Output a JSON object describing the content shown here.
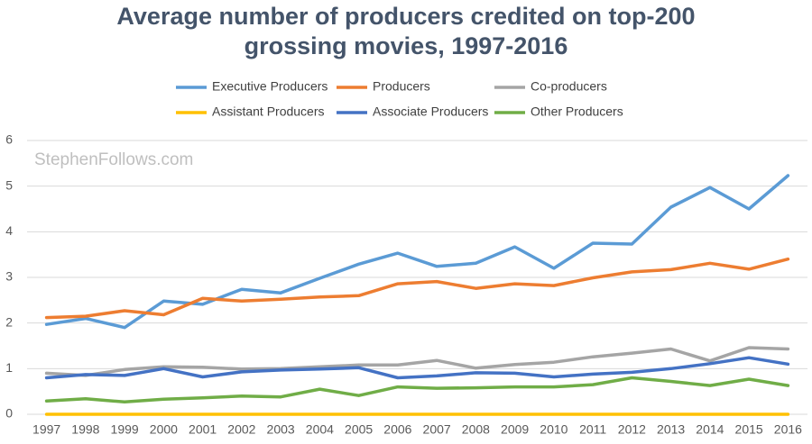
{
  "chart_data": {
    "type": "line",
    "title": [
      "Average number of producers credited on top-200",
      "grossing movies, 1997-2016"
    ],
    "watermark": "StephenFollows.com",
    "categories": [
      "1997",
      "1998",
      "1999",
      "2000",
      "2001",
      "2002",
      "2003",
      "2004",
      "2005",
      "2006",
      "2007",
      "2008",
      "2009",
      "2010",
      "2011",
      "2012",
      "2013",
      "2014",
      "2015",
      "2016"
    ],
    "series": [
      {
        "name": "Executive Producers",
        "color": "#5b9bd5",
        "values": [
          1.97,
          2.1,
          1.9,
          2.48,
          2.41,
          2.74,
          2.66,
          2.98,
          3.29,
          3.53,
          3.24,
          3.31,
          3.67,
          3.2,
          3.75,
          3.73,
          4.54,
          4.97,
          4.5,
          5.23
        ]
      },
      {
        "name": "Producers",
        "color": "#ed7d31",
        "values": [
          2.12,
          2.15,
          2.27,
          2.18,
          2.54,
          2.48,
          2.52,
          2.57,
          2.6,
          2.86,
          2.91,
          2.76,
          2.86,
          2.82,
          2.99,
          3.12,
          3.17,
          3.31,
          3.18,
          3.4
        ]
      },
      {
        "name": "Co-producers",
        "color": "#a5a5a5",
        "values": [
          0.9,
          0.85,
          0.98,
          1.04,
          1.03,
          0.99,
          1.0,
          1.04,
          1.08,
          1.08,
          1.18,
          1.01,
          1.09,
          1.14,
          1.26,
          1.34,
          1.43,
          1.17,
          1.46,
          1.43
        ]
      },
      {
        "name": "Assistant Producers",
        "color": "#ffc000",
        "values": [
          0,
          0,
          0,
          0,
          0,
          0,
          0,
          0,
          0,
          0,
          0,
          0,
          0,
          0,
          0,
          0,
          0,
          0,
          0,
          0
        ]
      },
      {
        "name": "Associate Producers",
        "color": "#4472c4",
        "values": [
          0.8,
          0.87,
          0.85,
          1.0,
          0.82,
          0.93,
          0.97,
          0.99,
          1.02,
          0.8,
          0.84,
          0.91,
          0.9,
          0.82,
          0.88,
          0.92,
          1.0,
          1.11,
          1.24,
          1.1
        ]
      },
      {
        "name": "Other Producers",
        "color": "#70ad47",
        "values": [
          0.29,
          0.34,
          0.27,
          0.33,
          0.36,
          0.4,
          0.38,
          0.55,
          0.41,
          0.6,
          0.57,
          0.58,
          0.6,
          0.6,
          0.65,
          0.8,
          0.72,
          0.63,
          0.77,
          0.63
        ]
      }
    ],
    "ylim": [
      0,
      6
    ],
    "yticks": [
      0,
      1,
      2,
      3,
      4,
      5,
      6
    ],
    "grid": true
  }
}
